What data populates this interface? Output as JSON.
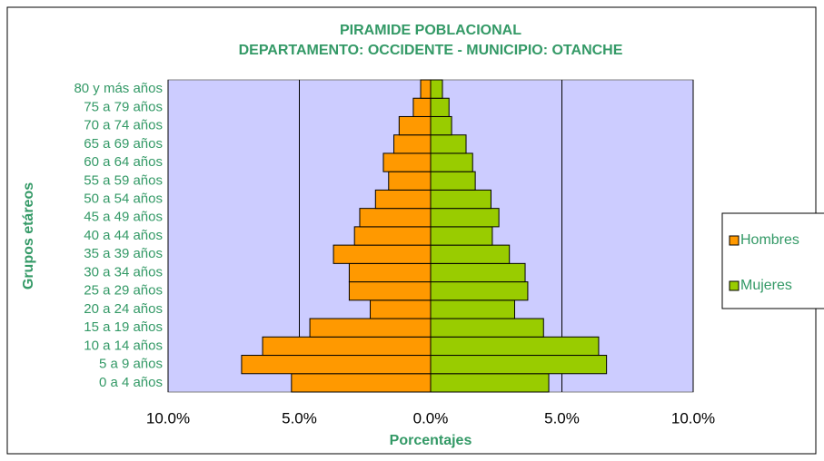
{
  "chart_data": {
    "type": "pyramid",
    "title": "PIRAMIDE POBLACIONAL",
    "subtitle": "DEPARTAMENTO: OCCIDENTE - MUNICIPIO: OTANCHE",
    "x_label": "Porcentajes",
    "y_label": "Grupos etáreos",
    "categories": [
      "0 a 4 años",
      "5 a 9 años",
      "10 a 14 años",
      "15 a 19 años",
      "20 a 24 años",
      "25 a 29 años",
      "30 a 34 años",
      "35 a 39 años",
      "40 a 44 años",
      "45 a 49 años",
      "50 a 54 años",
      "55 a 59 años",
      "60 a 64 años",
      "65 a 69 años",
      "70 a 74 años",
      "75 a 79 años",
      "80 y más años"
    ],
    "series": [
      {
        "name": "Hombres",
        "color": "#ff9900",
        "values": [
          5.3,
          7.2,
          6.4,
          4.6,
          2.3,
          3.1,
          3.1,
          3.7,
          2.9,
          2.7,
          2.1,
          1.6,
          1.8,
          1.4,
          1.2,
          0.66,
          0.38
        ]
      },
      {
        "name": "Mujeres",
        "color": "#99cc00",
        "values": [
          4.5,
          6.7,
          6.4,
          4.3,
          3.2,
          3.7,
          3.6,
          3.0,
          2.35,
          2.6,
          2.3,
          1.7,
          1.6,
          1.35,
          0.8,
          0.7,
          0.45
        ]
      }
    ],
    "xlim": [
      -10,
      10
    ],
    "xticks": [
      {
        "value": -10,
        "label": "10.0%"
      },
      {
        "value": -5,
        "label": "5.0%"
      },
      {
        "value": 0,
        "label": "0.0%"
      },
      {
        "value": 5,
        "label": "5.0%"
      },
      {
        "value": 10,
        "label": "10.0%"
      }
    ],
    "plot_color": "#ccccff",
    "grid": true,
    "legend": "right"
  }
}
